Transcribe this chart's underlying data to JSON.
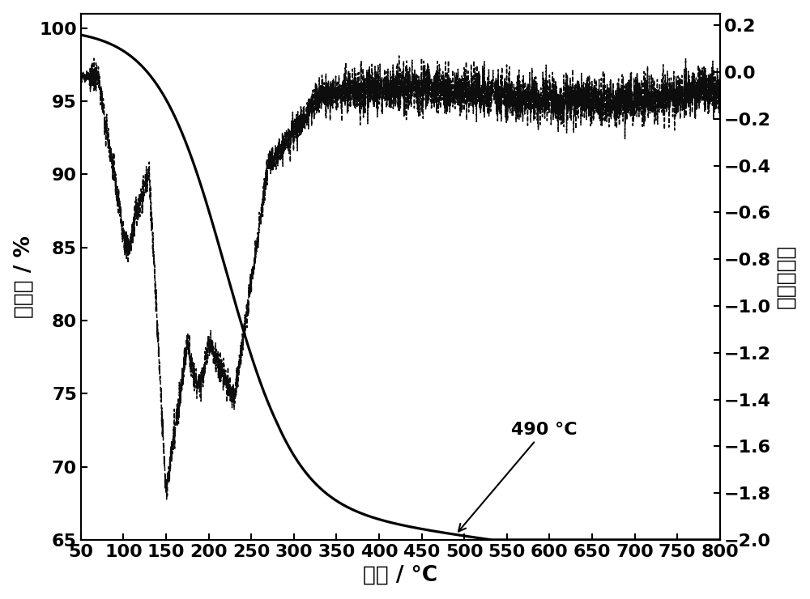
{
  "title": "",
  "xlabel": "温度 / °C",
  "ylabel_left": "失重量 / %",
  "ylabel_right": "微商失重量",
  "xlim": [
    50,
    800
  ],
  "ylim_left": [
    65,
    101
  ],
  "ylim_right": [
    -2.0,
    0.25
  ],
  "xticks": [
    50,
    100,
    150,
    200,
    250,
    300,
    350,
    400,
    450,
    500,
    550,
    600,
    650,
    700,
    750,
    800
  ],
  "yticks_left": [
    65,
    70,
    75,
    80,
    85,
    90,
    95,
    100
  ],
  "yticks_right": [
    -2.0,
    -1.8,
    -1.6,
    -1.4,
    -1.2,
    -1.0,
    -0.8,
    -0.6,
    -0.4,
    -0.2,
    0.0,
    0.2
  ],
  "annotation_text": "490 °C",
  "bg_color": "#ffffff",
  "line_color": "#000000",
  "fontsize_labels": 19,
  "fontsize_ticks": 16,
  "linewidth_tga": 2.3,
  "linewidth_dtg": 1.1
}
